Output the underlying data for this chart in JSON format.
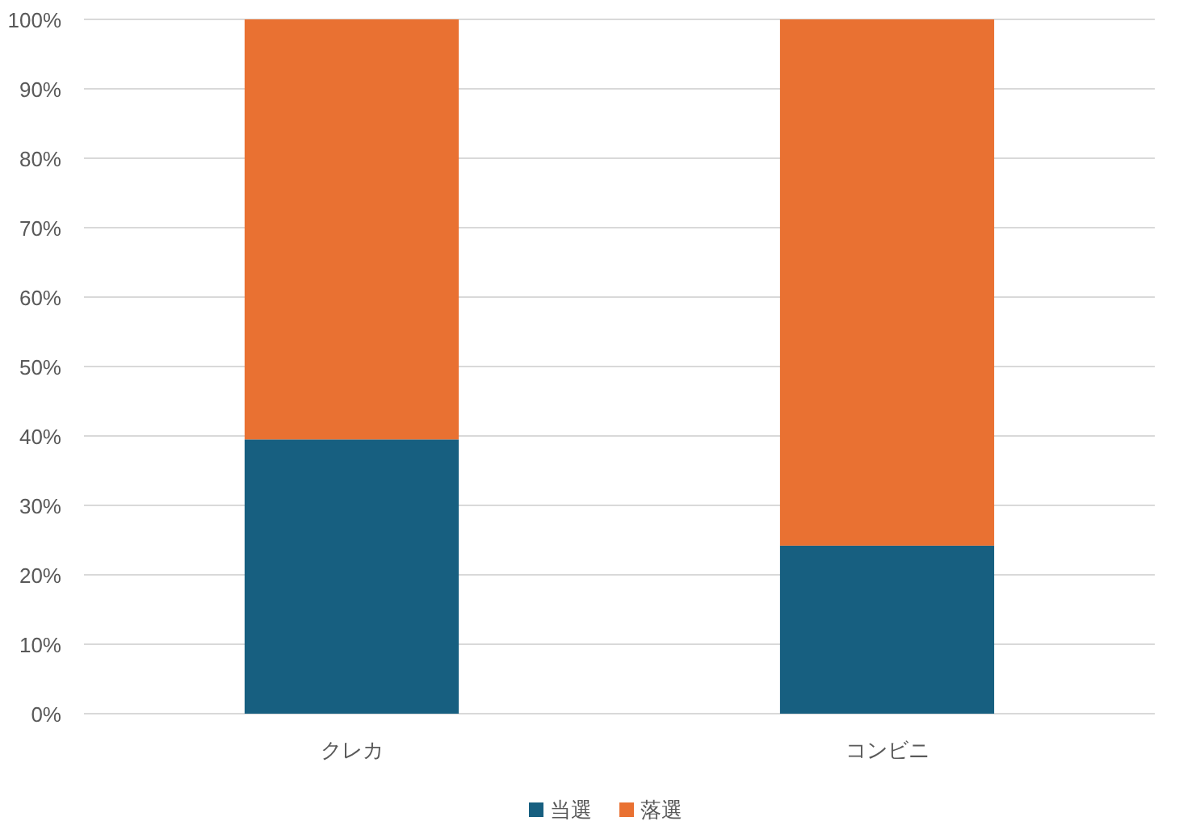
{
  "chart_data": {
    "type": "bar",
    "stacked": true,
    "categories": [
      "クレカ",
      "コンビニ"
    ],
    "series": [
      {
        "name": "当選",
        "color": "#175f80",
        "values": [
          39.5,
          24.2
        ]
      },
      {
        "name": "落選",
        "color": "#e97132",
        "values": [
          60.5,
          75.8
        ]
      }
    ],
    "ylim": [
      0,
      100
    ],
    "yticks": [
      {
        "value": 0,
        "label": "0%"
      },
      {
        "value": 10,
        "label": "10%"
      },
      {
        "value": 20,
        "label": "20%"
      },
      {
        "value": 30,
        "label": "30%"
      },
      {
        "value": 40,
        "label": "40%"
      },
      {
        "value": 50,
        "label": "50%"
      },
      {
        "value": 60,
        "label": "60%"
      },
      {
        "value": 70,
        "label": "70%"
      },
      {
        "value": 80,
        "label": "80%"
      },
      {
        "value": 90,
        "label": "90%"
      },
      {
        "value": 100,
        "label": "100%"
      }
    ],
    "grid": "y",
    "legend": "bottom"
  }
}
